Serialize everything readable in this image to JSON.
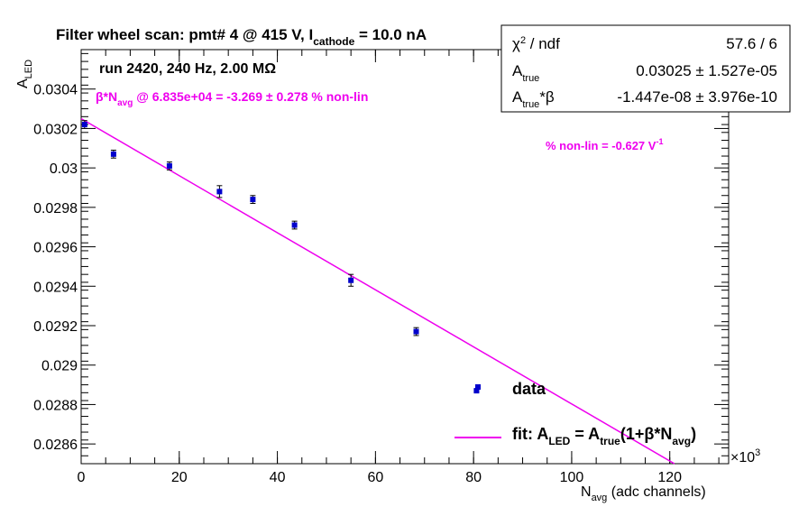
{
  "chart_data": {
    "type": "scatter",
    "title_main": "Filter wheel scan: pmt#   4 @   415 V, I",
    "title_sub": "cathode",
    "title_end": " = 10.0 nA",
    "run_info": "run 2420, 240 Hz, 2.00 MΩ",
    "xlabel_main": "N",
    "xlabel_sub": "avg",
    "xlabel_end": " (adc channels)",
    "ylabel_main": "A",
    "ylabel_sub": "LED",
    "x_multiplier": "×10",
    "x_multiplier_exp": "3",
    "xlim": [
      0,
      132
    ],
    "ylim": [
      0.0285,
      0.0306
    ],
    "x_ticks": [
      0,
      20,
      40,
      60,
      80,
      100,
      120
    ],
    "x_tick_labels": [
      "0",
      "20",
      "40",
      "60",
      "80",
      "100",
      "120"
    ],
    "y_ticks": [
      0.0286,
      0.0288,
      0.029,
      0.0292,
      0.0294,
      0.0296,
      0.0298,
      0.03,
      0.0302,
      0.0304
    ],
    "y_tick_labels": [
      "0.0286",
      "0.0288",
      "0.029",
      "0.0292",
      "0.0294",
      "0.0296",
      "0.0298",
      "0.03",
      "0.0302",
      "0.0304"
    ],
    "points": [
      {
        "x": 0.7,
        "y": 0.03022,
        "err": 2e-05
      },
      {
        "x": 6.6,
        "y": 0.03007,
        "err": 2e-05
      },
      {
        "x": 18.0,
        "y": 0.03001,
        "err": 2e-05
      },
      {
        "x": 28.2,
        "y": 0.02988,
        "err": 3e-05
      },
      {
        "x": 35.0,
        "y": 0.02984,
        "err": 2e-05
      },
      {
        "x": 43.5,
        "y": 0.02971,
        "err": 2e-05
      },
      {
        "x": 55.0,
        "y": 0.02943,
        "err": 3e-05
      },
      {
        "x": 68.3,
        "y": 0.02917,
        "err": 2e-05
      },
      {
        "x": 80.6,
        "y": 0.02887,
        "err": 5e-06
      }
    ],
    "fit": {
      "a": 0.03025,
      "b": -1.447e-08
    },
    "fit_line_color": "#ee00ee",
    "point_color": "#0000cc",
    "annotation_nonlin_a": "β*N",
    "annotation_nonlin_sub": "avg",
    "annotation_nonlin_b": " @ 6.835e+04 = -3.269 ± 0.278 % non-lin",
    "annotation_pct_main": "% non-lin = -0.627 V",
    "annotation_pct_sup": "-1",
    "stats": {
      "chi2_label_a": "χ",
      "chi2_label_sup": "2",
      "chi2_label_b": " / ndf",
      "chi2_value": "57.6 / 6",
      "atrue_label_a": "A",
      "atrue_label_sub": "true",
      "atrue_value": "0.03025 ± 1.527e-05",
      "atb_label_a": "A",
      "atb_label_sub": "true",
      "atb_label_b": "*β",
      "atb_value": "-1.447e-08 ± 3.976e-10"
    },
    "legend": {
      "data_label": "data",
      "fit_label_a": "fit: A",
      "fit_sub1": "LED",
      "fit_label_b": " = A",
      "fit_sub2": "true",
      "fit_label_c": "(1+β*N",
      "fit_sub3": "avg",
      "fit_label_d": ")"
    }
  }
}
